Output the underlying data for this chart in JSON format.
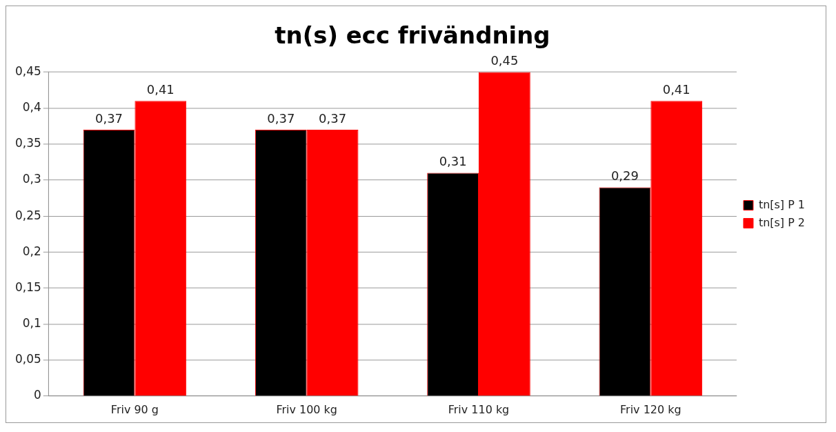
{
  "chart_data": {
    "type": "bar",
    "title": "tn(s) ecc frivändning",
    "categories": [
      "Friv 90 g",
      "Friv 100 kg",
      "Friv 110 kg",
      "Friv 120 kg"
    ],
    "series": [
      {
        "name": "tn[s] P 1",
        "color": "#000000",
        "values": [
          0.37,
          0.37,
          0.31,
          0.29
        ],
        "value_labels": [
          "0,37",
          "0,37",
          "0,31",
          "0,29"
        ]
      },
      {
        "name": "tn[s] P 2",
        "color": "#ff0000",
        "values": [
          0.41,
          0.37,
          0.45,
          0.41
        ],
        "value_labels": [
          "0,41",
          "0,37",
          "0,45",
          "0,41"
        ]
      }
    ],
    "ylim": [
      0,
      0.45
    ],
    "yticks": [
      0,
      {
        "value": 0.05,
        "label": "0,05"
      },
      {
        "value": 0.1,
        "label": "0,1"
      },
      {
        "value": 0.15,
        "label": "0,15"
      },
      {
        "value": 0.2,
        "label": "0,2"
      },
      {
        "value": 0.25,
        "label": "0,25"
      },
      {
        "value": 0.3,
        "label": "0,3"
      },
      {
        "value": 0.35,
        "label": "0,35"
      },
      {
        "value": 0.4,
        "label": "0,4"
      },
      {
        "value": 0.45,
        "label": "0,45"
      }
    ],
    "grid": "y",
    "legend": "right"
  }
}
